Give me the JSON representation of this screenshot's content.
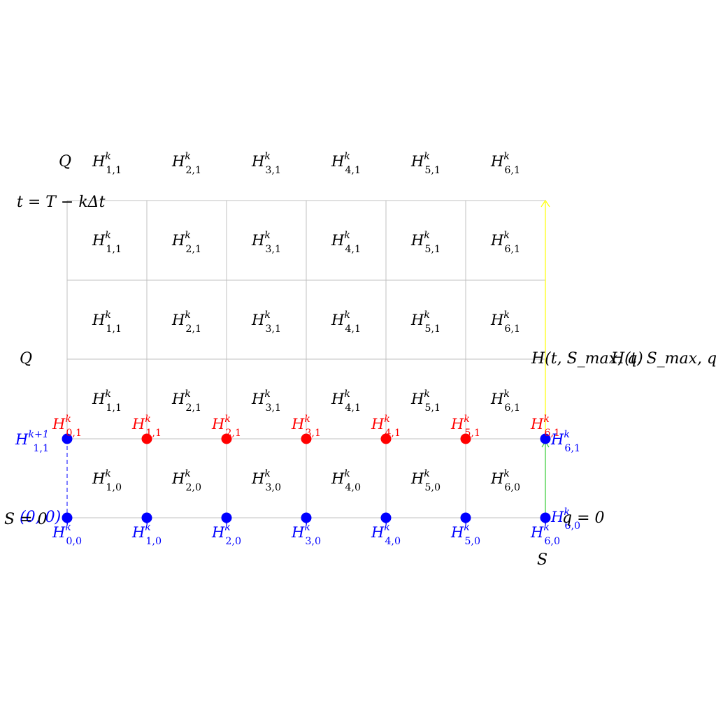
{
  "diagram": {
    "top_row_label": "Q",
    "time_label": "t = T − kΔt",
    "side_label": "Q",
    "boundary_label": "H(t, S_max, q)",
    "boundary_label_2": "H(t, S_max, q)",
    "origin_label": "(0, 0)",
    "origin_axis_label": "S = 0",
    "q_zero_label": "q = 0",
    "s_axis_label": "S",
    "upper_left_label": "H_{1,1}^{k+1}",
    "right_row1_label": "H_{6,1}^k",
    "right_row0_label": "H_{6,0}^k",
    "cell_labels_row1": [
      "H_{1,1}^k",
      "H_{2,1}^k",
      "H_{3,1}^k",
      "H_{4,1}^k",
      "H_{5,1}^k",
      "H_{6,1}^k"
    ],
    "cell_labels_row0": [
      "H_{1,0}^k",
      "H_{2,0}^k",
      "H_{3,0}^k",
      "H_{4,0}^k",
      "H_{5,0}^k",
      "H_{6,0}^k"
    ],
    "red_node_labels": [
      "H_{0,1}^k",
      "H_{1,1}^k",
      "H_{2,1}^k",
      "H_{3,1}^k",
      "H_{4,1}^k",
      "H_{5,1}^k",
      "H_{6,1}^k"
    ],
    "blue_node_labels": [
      "H_{0,0}^k",
      "H_{1,0}^k",
      "H_{2,0}^k",
      "H_{3,0}^k",
      "H_{4,0}^k",
      "H_{5,0}^k",
      "H_{6,0}^k"
    ],
    "colors": {
      "grid": "#c0c0c0",
      "blue": "#0000ff",
      "red": "#ff0000",
      "yellow": "#ffff00",
      "green": "#33cc33",
      "text": "#000000"
    }
  }
}
